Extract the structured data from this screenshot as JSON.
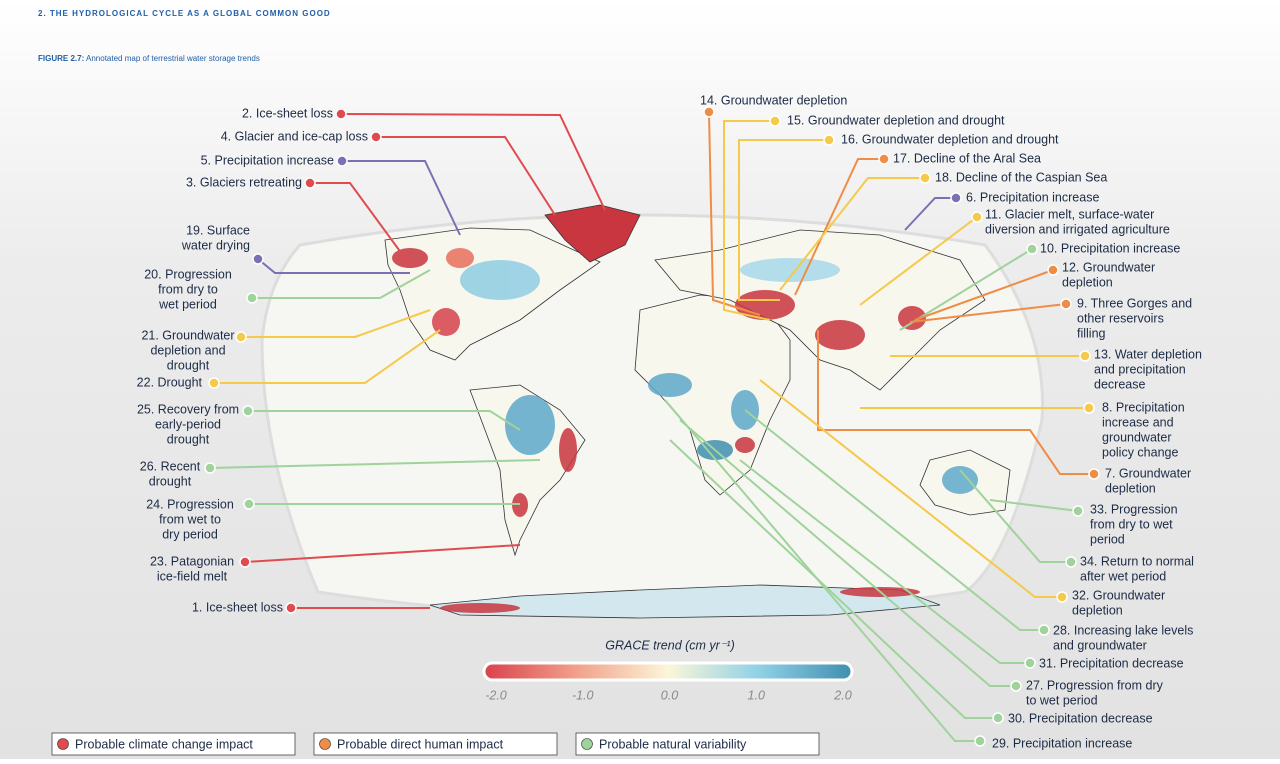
{
  "header": {
    "section": "2.  THE HYDROLOGICAL CYCLE AS A GLOBAL COMMON GOOD",
    "figure_label": "FIGURE 2.7:",
    "figure_title": "Annotated map of terrestrial water storage trends"
  },
  "annotations": [
    {
      "lines": [
        "2. Ice-sheet loss"
      ],
      "color": "#e04b4f"
    },
    {
      "lines": [
        "4. Glacier and ice-cap loss"
      ],
      "color": "#e04b4f"
    },
    {
      "lines": [
        "5. Precipitation increase"
      ],
      "color": "#7a70b3"
    },
    {
      "lines": [
        "3. Glaciers retreating"
      ],
      "color": "#e04b4f"
    },
    {
      "lines": [
        "19. Surface",
        "water drying"
      ],
      "color": "#7a70b3"
    },
    {
      "lines": [
        "20. Progression",
        "from dry to",
        "wet period"
      ],
      "color": "#9fd39b"
    },
    {
      "lines": [
        "21. Groundwater",
        "depletion and",
        "drought"
      ],
      "color": "#f5c94a"
    },
    {
      "lines": [
        "22. Drought"
      ],
      "color": "#f5c94a"
    },
    {
      "lines": [
        "25. Recovery from",
        "early-period",
        "drought"
      ],
      "color": "#9fd39b"
    },
    {
      "lines": [
        "26. Recent",
        "drought"
      ],
      "color": "#9fd39b"
    },
    {
      "lines": [
        "24. Progression",
        "from wet to",
        "dry period"
      ],
      "color": "#9fd39b"
    },
    {
      "lines": [
        "23. Patagonian",
        "ice-field melt"
      ],
      "color": "#e04b4f"
    },
    {
      "lines": [
        "1. Ice-sheet loss"
      ],
      "color": "#e04b4f"
    },
    {
      "lines": [
        "14. Groundwater depletion"
      ],
      "color": "#ef8c45"
    },
    {
      "lines": [
        "15. Groundwater depletion and drought"
      ],
      "color": "#f5c94a"
    },
    {
      "lines": [
        "16. Groundwater depletion and drought"
      ],
      "color": "#f5c94a"
    },
    {
      "lines": [
        "17. Decline of the Aral Sea"
      ],
      "color": "#ef8c45"
    },
    {
      "lines": [
        "18. Decline of the Caspian Sea"
      ],
      "color": "#f5c94a"
    },
    {
      "lines": [
        "6. Precipitation increase"
      ],
      "color": "#7a70b3"
    },
    {
      "lines": [
        "11. Glacier melt, surface-water",
        "diversion and irrigated agriculture"
      ],
      "color": "#f5c94a"
    },
    {
      "lines": [
        "10. Precipitation increase"
      ],
      "color": "#9fd39b"
    },
    {
      "lines": [
        "12. Groundwater",
        "depletion"
      ],
      "color": "#ef8c45"
    },
    {
      "lines": [
        "9. Three Gorges and",
        "other reservoirs",
        "filling"
      ],
      "color": "#ef8c45"
    },
    {
      "lines": [
        "13. Water depletion",
        "and precipitation",
        "decrease"
      ],
      "color": "#f5c94a"
    },
    {
      "lines": [
        "8. Precipitation",
        "increase and",
        "groundwater",
        "policy change"
      ],
      "color": "#f5c94a"
    },
    {
      "lines": [
        "7. Groundwater",
        "depletion"
      ],
      "color": "#ef8c45"
    },
    {
      "lines": [
        "33. Progression",
        "from dry to wet",
        "period"
      ],
      "color": "#9fd39b"
    },
    {
      "lines": [
        "34. Return to normal",
        "after wet period"
      ],
      "color": "#9fd39b"
    },
    {
      "lines": [
        "32. Groundwater",
        "depletion"
      ],
      "color": "#f5c94a"
    },
    {
      "lines": [
        "28. Increasing lake levels",
        "and groundwater"
      ],
      "color": "#9fd39b"
    },
    {
      "lines": [
        "31. Precipitation decrease"
      ],
      "color": "#9fd39b"
    },
    {
      "lines": [
        "27. Progression from dry",
        "to wet period"
      ],
      "color": "#9fd39b"
    },
    {
      "lines": [
        "30. Precipitation decrease"
      ],
      "color": "#9fd39b"
    },
    {
      "lines": [
        "29. Precipitation increase"
      ],
      "color": "#9fd39b"
    }
  ],
  "colorbar": {
    "title": "GRACE trend (cm yr⁻¹)",
    "ticks": [
      {
        "value": -2,
        "label": "-2.0"
      },
      {
        "value": -1,
        "label": "-1.0"
      },
      {
        "value": 0,
        "label": "0.0"
      },
      {
        "value": 1,
        "label": "1.0"
      },
      {
        "value": 2,
        "label": "2.0"
      }
    ]
  },
  "legend": [
    {
      "label": "Probable climate change impact",
      "color": "#e04b4f"
    },
    {
      "label": "Probable direct human impact",
      "color": "#ef8c45"
    },
    {
      "label": "Probable natural variability",
      "color": "#9fd39b"
    }
  ]
}
